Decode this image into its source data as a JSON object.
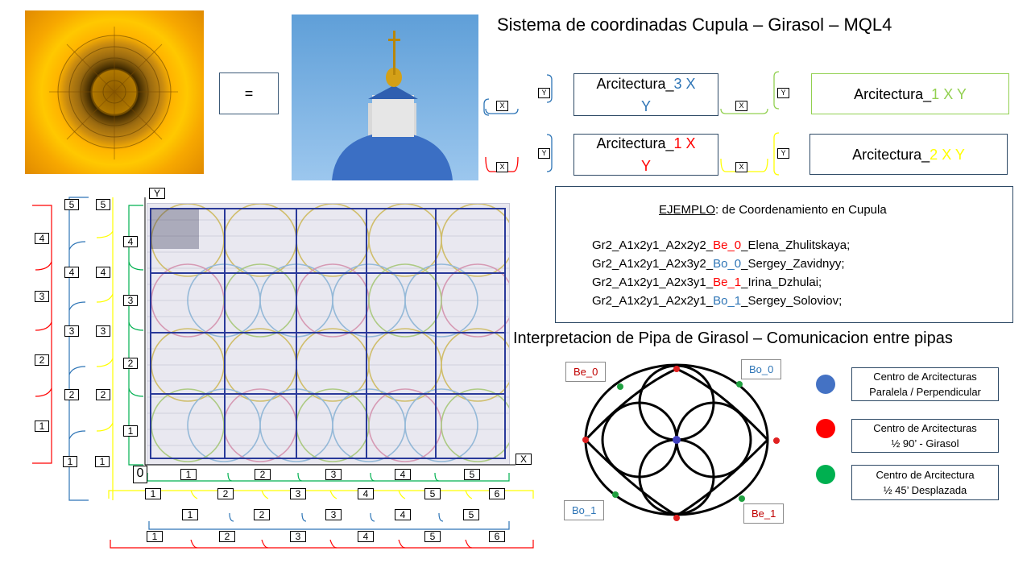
{
  "title": "Sistema de coordinadas Cupula – Girasol – MQL4",
  "equal_sign": "=",
  "arch_boxes": [
    {
      "prefix": "Arcitectura_",
      "num": "3",
      "axes": "X",
      "second": "Y",
      "color": "#2e75b6"
    },
    {
      "prefix": "Arcitectura_",
      "num": "1",
      "axes": "X Y",
      "second": "",
      "color": "#92d050"
    },
    {
      "prefix": "Arcitectura_",
      "num": "1",
      "axes": "X",
      "second": "Y",
      "color": "#ff0000"
    },
    {
      "prefix": "Arcitectura_",
      "num": "2",
      "axes": "X Y",
      "second": "",
      "color": "#ffff00"
    }
  ],
  "axis_labels": {
    "x": "X",
    "y": "Y",
    "origin": "0"
  },
  "example": {
    "title_underlined": "EJEMPLO",
    "title_rest": ": de Coordenamiento en Cupula",
    "lines": [
      {
        "pre": "Gr2_A1x2y1_A2x2y2_",
        "code": "Be_0",
        "post": "_Elena_Zhulitskaya;",
        "color": "#ff0000"
      },
      {
        "pre": "Gr2_A1x2y1_A2x3y2_",
        "code": "Bo_0",
        "post": "_Sergey_Zavidnyy;",
        "color": "#2e75b6"
      },
      {
        "pre": "Gr2_A1x2y1_A2x3y1_",
        "code": "Be_1",
        "post": "_Irina_Dzhulai;",
        "color": "#ff0000"
      },
      {
        "pre": "Gr2_A1x2y1_A2x2y1_",
        "code": "Bo_1",
        "post": "_Sergey_Soloviov;",
        "color": "#2e75b6"
      }
    ]
  },
  "subtitle": "Interpretacion de Pipa de Girasol – Comunicacion entre pipas",
  "diagram_tags": [
    {
      "text": "Be_0",
      "color": "#c00000"
    },
    {
      "text": "Bo_0",
      "color": "#2e75b6"
    },
    {
      "text": "Bo_1",
      "color": "#2e75b6"
    },
    {
      "text": "Be_1",
      "color": "#c00000"
    }
  ],
  "legend": [
    {
      "color": "#4472c4",
      "line1": "Centro de Arcitecturas",
      "line2": "Paralela / Perpendicular"
    },
    {
      "color": "#ff0000",
      "line1": "Centro de Arcitecturas",
      "line2": "½ 90’ - Girasol"
    },
    {
      "color": "#00b050",
      "line1": "Centro de Arcitectura",
      "line2": "½ 45’ Desplazada"
    }
  ],
  "scales": {
    "row1": [
      "1",
      "2",
      "3",
      "4",
      "5"
    ],
    "row2": [
      "1",
      "2",
      "3",
      "4",
      "5",
      "6"
    ],
    "row3": [
      "1",
      "2",
      "3",
      "4",
      "5"
    ],
    "row4": [
      "1",
      "2",
      "3",
      "4",
      "5",
      "6"
    ],
    "col_a": [
      "1",
      "2",
      "3",
      "4"
    ],
    "col_b": [
      "1",
      "2",
      "3",
      "4",
      "5"
    ],
    "col_c": [
      "1",
      "2",
      "3",
      "4",
      "5"
    ],
    "col_d": [
      "1",
      "2",
      "3",
      "4"
    ]
  },
  "colors": {
    "blue": "#2e75b6",
    "red": "#ff0000",
    "green": "#92d050",
    "yellow": "#ffff00"
  }
}
